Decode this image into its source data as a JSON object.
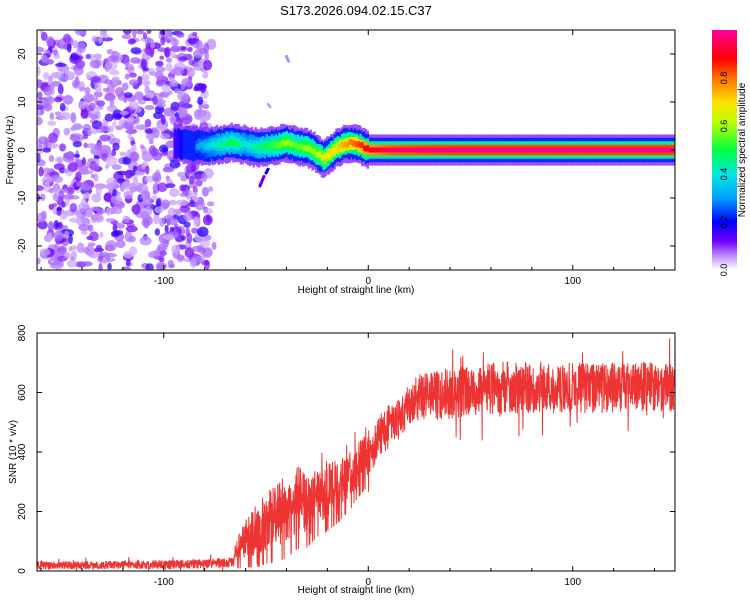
{
  "title": "S173.2026.094.02.15.C37",
  "chart_data": [
    {
      "type": "heatmap",
      "xlabel": "Height of straight line (km)",
      "ylabel": "Frequency (Hz)",
      "xlim": [
        -162,
        150
      ],
      "ylim": [
        -25,
        25
      ],
      "xticks": [
        -100,
        0,
        100
      ],
      "xtick_labels": [
        "-100",
        "0",
        "100"
      ],
      "yticks": [
        -20,
        -10,
        0,
        10,
        20
      ],
      "ytick_labels": [
        "-20",
        "-10",
        "0",
        "10",
        "20"
      ],
      "noise_region_x": [
        -162,
        -78
      ],
      "ridge": {
        "x": [
          -95,
          -88,
          -80,
          -72,
          -66,
          -60,
          -55,
          -50,
          -45,
          -40,
          -35,
          -30,
          -26,
          -22,
          -20,
          -16,
          -12,
          -8,
          -4,
          0,
          10,
          30,
          60,
          100,
          150
        ],
        "freq": [
          1.5,
          1.0,
          0.8,
          1.2,
          1.6,
          1.0,
          0.5,
          0.8,
          1.0,
          1.5,
          0.8,
          0.5,
          -0.5,
          -1.8,
          -1.2,
          0.3,
          1.2,
          1.4,
          1.0,
          0.0,
          0.0,
          0.0,
          0.0,
          0.0,
          0.0
        ],
        "amplitude": [
          0.15,
          0.25,
          0.35,
          0.45,
          0.5,
          0.4,
          0.45,
          0.5,
          0.55,
          0.6,
          0.55,
          0.6,
          0.6,
          0.65,
          0.7,
          0.7,
          0.75,
          0.8,
          0.85,
          0.9,
          0.95,
          0.97,
          0.98,
          0.98,
          0.98
        ]
      },
      "colorbar": {
        "label": "Normalized spectral amplitude",
        "range": [
          0,
          1
        ],
        "ticks": [
          0.0,
          0.2,
          0.4,
          0.6,
          0.8
        ],
        "tick_labels": [
          "0.0",
          "0.2",
          "0.4",
          "0.6",
          "0.8"
        ],
        "colormap": [
          "#ffffff",
          "#7000ff",
          "#0000ff",
          "#00e0ff",
          "#00ff40",
          "#c0ff00",
          "#ffe000",
          "#ff6000",
          "#ff0000",
          "#ff00a0"
        ]
      }
    },
    {
      "type": "line",
      "xlabel": "Height of straight line (km)",
      "ylabel": "SNR (10 * v/v)",
      "xlim": [
        -162,
        150
      ],
      "ylim": [
        0,
        800
      ],
      "xticks": [
        -100,
        0,
        100
      ],
      "xtick_labels": [
        "-100",
        "0",
        "100"
      ],
      "yticks": [
        0,
        200,
        400,
        600,
        800
      ],
      "ytick_labels": [
        "0",
        "200",
        "400",
        "600",
        "800"
      ],
      "series": [
        {
          "name": "SNR",
          "color": "#ee3333",
          "x": [
            -162,
            -140,
            -120,
            -100,
            -80,
            -66,
            -64,
            -60,
            -55,
            -50,
            -45,
            -40,
            -35,
            -30,
            -25,
            -20,
            -15,
            -10,
            -5,
            0,
            5,
            10,
            15,
            20,
            25,
            30,
            40,
            50,
            60,
            80,
            100,
            120,
            150
          ],
          "mean": [
            20,
            20,
            22,
            22,
            25,
            30,
            90,
            110,
            140,
            170,
            190,
            220,
            250,
            240,
            260,
            280,
            290,
            320,
            360,
            400,
            450,
            490,
            520,
            560,
            590,
            590,
            600,
            610,
            620,
            620,
            620,
            620,
            625
          ],
          "spread": [
            12,
            12,
            12,
            14,
            14,
            16,
            50,
            60,
            80,
            90,
            100,
            110,
            110,
            100,
            90,
            90,
            80,
            75,
            70,
            70,
            70,
            70,
            70,
            70,
            75,
            75,
            80,
            80,
            85,
            80,
            80,
            80,
            80
          ]
        }
      ]
    }
  ]
}
